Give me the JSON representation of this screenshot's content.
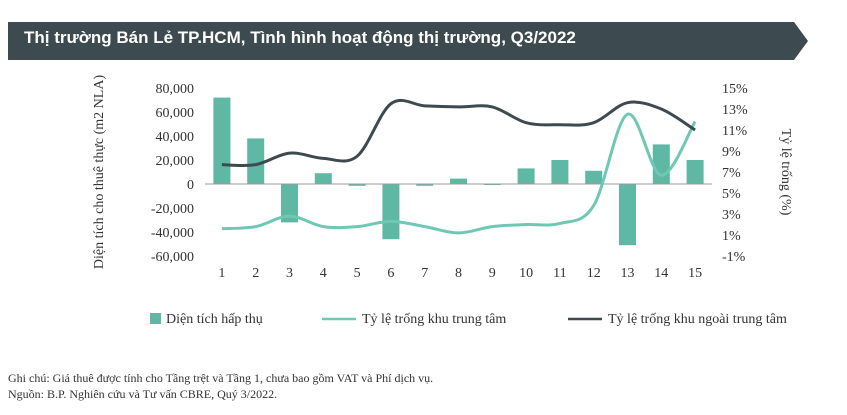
{
  "header": {
    "title": "Thị trường Bán Lẻ TP.HCM, Tình hình hoạt động thị trường, Q3/2022"
  },
  "chart_data": {
    "type": "bar",
    "categories": [
      "1",
      "2",
      "3",
      "4",
      "5",
      "6",
      "7",
      "8",
      "9",
      "10",
      "11",
      "12",
      "13",
      "14",
      "15"
    ],
    "ylabel_left": "Diện tích cho thuê thực (m2 NLA)",
    "ylabel_right": "Tỷ lệ trống (%)",
    "y_left_lim": [
      -60000,
      80000
    ],
    "y_left_ticks": [
      "80,000",
      "60,000",
      "40,000",
      "20,000",
      "0",
      "-20,000",
      "-40,000",
      "-60,000"
    ],
    "y_right_lim": [
      -1,
      15
    ],
    "y_right_ticks": [
      "15%",
      "13%",
      "11%",
      "9%",
      "7%",
      "5%",
      "3%",
      "1%",
      "-1%"
    ],
    "series": [
      {
        "name": "Diện tích hấp thụ",
        "kind": "bar",
        "axis": "left",
        "color": "#5fb8a4",
        "values": [
          72000,
          38000,
          -32000,
          9000,
          -1500,
          -46000,
          -1500,
          4500,
          -500,
          13000,
          20000,
          11000,
          -51000,
          33000,
          20000
        ]
      },
      {
        "name": "Tỷ lệ trống khu trung tâm",
        "kind": "line",
        "axis": "right",
        "color": "#6fc8b4",
        "values": [
          1.6,
          1.8,
          2.8,
          1.8,
          1.8,
          2.3,
          1.8,
          1.2,
          1.8,
          2.0,
          2.1,
          3.8,
          12.5,
          6.7,
          11.8
        ]
      },
      {
        "name": "Tỷ lệ trống khu ngoài trung tâm",
        "kind": "line",
        "axis": "right",
        "color": "#3e4a4f",
        "values": [
          7.7,
          7.7,
          8.8,
          8.3,
          8.5,
          13.5,
          13.3,
          13.2,
          13.2,
          11.7,
          11.5,
          11.7,
          13.6,
          13.0,
          11.0
        ]
      }
    ],
    "legend_position": "bottom",
    "grid": false
  },
  "notes": {
    "line1": "Ghi chú: Giá thuê được tính cho Tầng trệt và Tầng 1, chưa bao gồm VAT và Phí dịch vụ.",
    "line2": "Nguồn: B.P. Nghiên cứu và Tư vấn CBRE, Quý 3/2022."
  },
  "colors": {
    "banner": "#3d4a4f",
    "bar": "#5fb8a4",
    "line_center": "#6fc8b4",
    "line_outer": "#3e4a4f"
  }
}
